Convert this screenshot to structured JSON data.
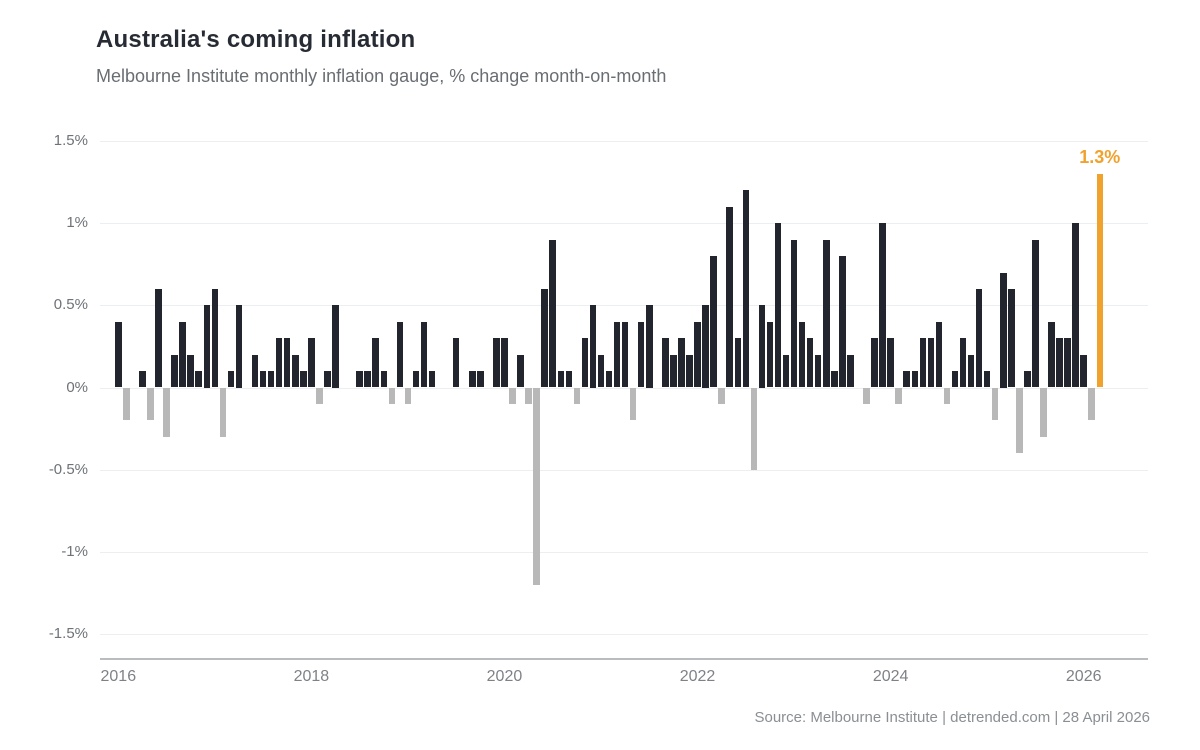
{
  "chart_data": {
    "type": "bar",
    "title": "Australia's coming inflation",
    "subtitle": "Melbourne Institute monthly inflation gauge, % change month-on-month",
    "source": "Source: Melbourne Institute | detrended.com | 28 April 2026",
    "frequency": "monthly",
    "start_year": 2016,
    "start_month": 1,
    "unit": "percent",
    "ylim": [
      -1.5,
      1.5
    ],
    "grid": true,
    "legend": false,
    "values": [
      0.4,
      -0.2,
      0.0,
      0.1,
      -0.2,
      0.6,
      -0.3,
      0.2,
      0.4,
      0.2,
      0.1,
      0.5,
      0.6,
      -0.3,
      0.1,
      0.5,
      0.0,
      0.2,
      0.1,
      0.1,
      0.3,
      0.3,
      0.2,
      0.1,
      0.3,
      -0.1,
      0.1,
      0.5,
      0.0,
      0.0,
      0.1,
      0.1,
      0.3,
      0.1,
      -0.1,
      0.4,
      -0.1,
      0.1,
      0.4,
      0.1,
      0.0,
      0.0,
      0.3,
      0.0,
      0.1,
      0.1,
      0.0,
      0.3,
      0.3,
      -0.1,
      0.2,
      -0.1,
      -1.2,
      0.6,
      0.9,
      0.1,
      0.1,
      -0.1,
      0.3,
      0.5,
      0.2,
      0.1,
      0.4,
      0.4,
      -0.2,
      0.4,
      0.5,
      0.0,
      0.3,
      0.2,
      0.3,
      0.2,
      0.4,
      0.5,
      0.8,
      -0.1,
      1.1,
      0.3,
      1.2,
      -0.5,
      0.5,
      0.4,
      1.0,
      0.2,
      0.9,
      0.4,
      0.3,
      0.2,
      0.9,
      0.1,
      0.8,
      0.2,
      0.0,
      -0.1,
      0.3,
      1.0,
      0.3,
      -0.1,
      0.1,
      0.1,
      0.3,
      0.3,
      0.4,
      -0.1,
      0.1,
      0.3,
      0.2,
      0.6,
      0.1,
      -0.2,
      0.7,
      0.6,
      -0.4,
      0.1,
      0.9,
      -0.3,
      0.4,
      0.3,
      0.3,
      1.0,
      0.2,
      -0.2,
      1.3
    ],
    "highlight": {
      "index": 122,
      "label": "1.3%",
      "period": "2026-03"
    },
    "colors": {
      "positive": "#22252d",
      "negative": "#b8b8b8",
      "highlight": "#f0a22d",
      "gridline": "#eceff2",
      "axis": "#b9bdc0"
    },
    "yticks": [
      {
        "label": "1.5%",
        "value": 1.5
      },
      {
        "label": "1%",
        "value": 1.0
      },
      {
        "label": "0.5%",
        "value": 0.5
      },
      {
        "label": "0%",
        "value": 0.0
      },
      {
        "label": "-0.5%",
        "value": -0.5
      },
      {
        "label": "-1%",
        "value": -1.0
      },
      {
        "label": "-1.5%",
        "value": -1.5
      }
    ],
    "xticks": [
      {
        "label": "2016",
        "month_index": 0
      },
      {
        "label": "2018",
        "month_index": 24
      },
      {
        "label": "2020",
        "month_index": 48
      },
      {
        "label": "2022",
        "month_index": 72
      },
      {
        "label": "2024",
        "month_index": 96
      },
      {
        "label": "2026",
        "month_index": 120
      }
    ]
  }
}
